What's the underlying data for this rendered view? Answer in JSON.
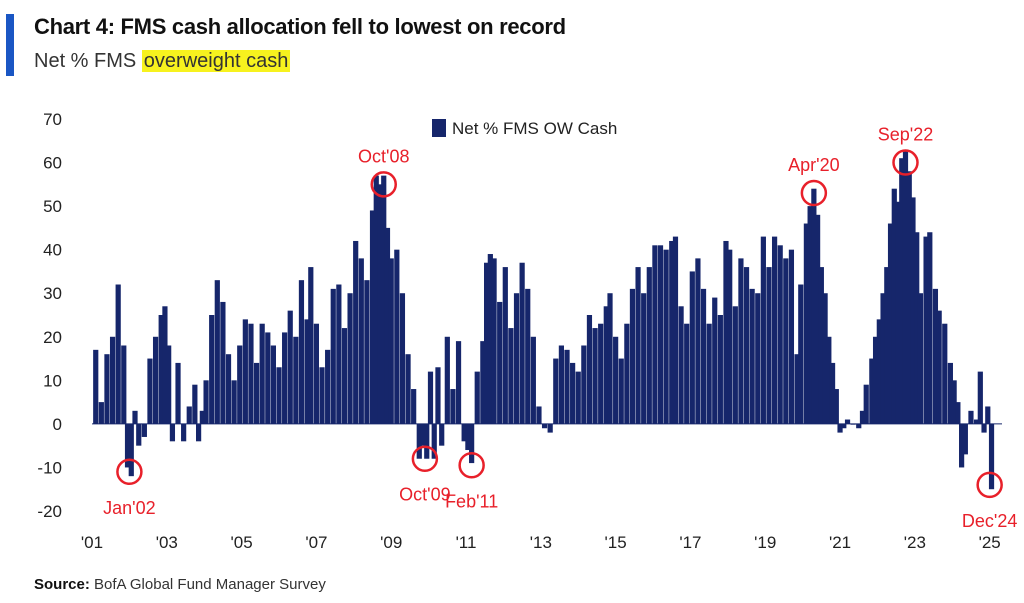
{
  "header": {
    "title": "Chart 4: FMS cash allocation fell to lowest on record",
    "subtitle_prefix": "Net % FMS ",
    "subtitle_highlight": "overweight cash"
  },
  "source": {
    "label": "Source:",
    "text": "BofA Global Fund Manager Survey"
  },
  "colors": {
    "bar": "#16266b",
    "annotation": "#e8202a",
    "accent": "#1a56c4",
    "highlight": "#f7f21e"
  },
  "chart_data": {
    "type": "bar",
    "legend": {
      "label": "Net % FMS OW Cash",
      "position": "top-center"
    },
    "ylim": [
      -20,
      70
    ],
    "yticks": [
      -20,
      -10,
      0,
      10,
      20,
      30,
      40,
      50,
      60,
      70
    ],
    "xlim": [
      2001.0,
      2025.33
    ],
    "xticks": [
      {
        "value": 2001,
        "label": "'01"
      },
      {
        "value": 2003,
        "label": "'03"
      },
      {
        "value": 2005,
        "label": "'05"
      },
      {
        "value": 2007,
        "label": "'07"
      },
      {
        "value": 2009,
        "label": "'09"
      },
      {
        "value": 2011,
        "label": "'11"
      },
      {
        "value": 2013,
        "label": "'13"
      },
      {
        "value": 2015,
        "label": "'15"
      },
      {
        "value": 2017,
        "label": "'17"
      },
      {
        "value": 2019,
        "label": "'19"
      },
      {
        "value": 2021,
        "label": "'21"
      },
      {
        "value": 2023,
        "label": "'23"
      },
      {
        "value": 2025,
        "label": "'25"
      }
    ],
    "grid": false,
    "series": [
      {
        "name": "Net % FMS OW Cash",
        "points": [
          [
            2001.1,
            17
          ],
          [
            2001.25,
            5
          ],
          [
            2001.4,
            16
          ],
          [
            2001.55,
            20
          ],
          [
            2001.7,
            32
          ],
          [
            2001.85,
            18
          ],
          [
            2001.95,
            -10
          ],
          [
            2002.05,
            -12
          ],
          [
            2002.15,
            3
          ],
          [
            2002.25,
            -5
          ],
          [
            2002.4,
            -3
          ],
          [
            2002.55,
            15
          ],
          [
            2002.7,
            20
          ],
          [
            2002.85,
            25
          ],
          [
            2002.95,
            27
          ],
          [
            2003.05,
            18
          ],
          [
            2003.15,
            -4
          ],
          [
            2003.3,
            14
          ],
          [
            2003.45,
            -4
          ],
          [
            2003.6,
            4
          ],
          [
            2003.75,
            9
          ],
          [
            2003.85,
            -4
          ],
          [
            2003.95,
            3
          ],
          [
            2004.05,
            10
          ],
          [
            2004.2,
            25
          ],
          [
            2004.35,
            33
          ],
          [
            2004.5,
            28
          ],
          [
            2004.65,
            16
          ],
          [
            2004.8,
            10
          ],
          [
            2004.95,
            18
          ],
          [
            2005.1,
            24
          ],
          [
            2005.25,
            23
          ],
          [
            2005.4,
            14
          ],
          [
            2005.55,
            23
          ],
          [
            2005.7,
            21
          ],
          [
            2005.85,
            18
          ],
          [
            2006.0,
            13
          ],
          [
            2006.15,
            21
          ],
          [
            2006.3,
            26
          ],
          [
            2006.45,
            20
          ],
          [
            2006.6,
            33
          ],
          [
            2006.75,
            24
          ],
          [
            2006.85,
            36
          ],
          [
            2007.0,
            23
          ],
          [
            2007.15,
            13
          ],
          [
            2007.3,
            17
          ],
          [
            2007.45,
            31
          ],
          [
            2007.6,
            32
          ],
          [
            2007.75,
            22
          ],
          [
            2007.9,
            30
          ],
          [
            2008.05,
            42
          ],
          [
            2008.2,
            38
          ],
          [
            2008.35,
            33
          ],
          [
            2008.5,
            49
          ],
          [
            2008.6,
            57
          ],
          [
            2008.7,
            55
          ],
          [
            2008.8,
            57
          ],
          [
            2008.9,
            45
          ],
          [
            2009.0,
            38
          ],
          [
            2009.15,
            40
          ],
          [
            2009.3,
            30
          ],
          [
            2009.45,
            16
          ],
          [
            2009.6,
            8
          ],
          [
            2009.75,
            -8
          ],
          [
            2009.85,
            -5
          ],
          [
            2009.95,
            -8
          ],
          [
            2010.05,
            12
          ],
          [
            2010.15,
            -8
          ],
          [
            2010.25,
            13
          ],
          [
            2010.35,
            -5
          ],
          [
            2010.5,
            20
          ],
          [
            2010.65,
            8
          ],
          [
            2010.8,
            19
          ],
          [
            2010.95,
            -4
          ],
          [
            2011.05,
            -6
          ],
          [
            2011.15,
            -9
          ],
          [
            2011.3,
            12
          ],
          [
            2011.45,
            19
          ],
          [
            2011.55,
            37
          ],
          [
            2011.65,
            39
          ],
          [
            2011.75,
            38
          ],
          [
            2011.9,
            28
          ],
          [
            2012.05,
            36
          ],
          [
            2012.2,
            22
          ],
          [
            2012.35,
            30
          ],
          [
            2012.5,
            37
          ],
          [
            2012.65,
            31
          ],
          [
            2012.8,
            20
          ],
          [
            2012.95,
            4
          ],
          [
            2013.1,
            -1
          ],
          [
            2013.25,
            -2
          ],
          [
            2013.4,
            15
          ],
          [
            2013.55,
            18
          ],
          [
            2013.7,
            17
          ],
          [
            2013.85,
            14
          ],
          [
            2014.0,
            12
          ],
          [
            2014.15,
            18
          ],
          [
            2014.3,
            25
          ],
          [
            2014.45,
            22
          ],
          [
            2014.6,
            23
          ],
          [
            2014.75,
            27
          ],
          [
            2014.85,
            30
          ],
          [
            2015.0,
            20
          ],
          [
            2015.15,
            15
          ],
          [
            2015.3,
            23
          ],
          [
            2015.45,
            31
          ],
          [
            2015.6,
            36
          ],
          [
            2015.75,
            30
          ],
          [
            2015.9,
            36
          ],
          [
            2016.05,
            41
          ],
          [
            2016.2,
            41
          ],
          [
            2016.35,
            40
          ],
          [
            2016.5,
            42
          ],
          [
            2016.6,
            43
          ],
          [
            2016.75,
            27
          ],
          [
            2016.9,
            23
          ],
          [
            2017.05,
            35
          ],
          [
            2017.2,
            38
          ],
          [
            2017.35,
            31
          ],
          [
            2017.5,
            23
          ],
          [
            2017.65,
            29
          ],
          [
            2017.8,
            25
          ],
          [
            2017.95,
            42
          ],
          [
            2018.05,
            40
          ],
          [
            2018.2,
            27
          ],
          [
            2018.35,
            38
          ],
          [
            2018.5,
            36
          ],
          [
            2018.65,
            31
          ],
          [
            2018.8,
            30
          ],
          [
            2018.95,
            43
          ],
          [
            2019.1,
            36
          ],
          [
            2019.25,
            43
          ],
          [
            2019.4,
            41
          ],
          [
            2019.55,
            38
          ],
          [
            2019.7,
            40
          ],
          [
            2019.85,
            16
          ],
          [
            2019.95,
            32
          ],
          [
            2020.1,
            46
          ],
          [
            2020.2,
            50
          ],
          [
            2020.3,
            54
          ],
          [
            2020.4,
            48
          ],
          [
            2020.5,
            36
          ],
          [
            2020.6,
            30
          ],
          [
            2020.7,
            20
          ],
          [
            2020.8,
            14
          ],
          [
            2020.9,
            8
          ],
          [
            2021.0,
            -2
          ],
          [
            2021.1,
            -1
          ],
          [
            2021.2,
            1
          ],
          [
            2021.35,
            0
          ],
          [
            2021.5,
            -1
          ],
          [
            2021.6,
            3
          ],
          [
            2021.7,
            9
          ],
          [
            2021.85,
            15
          ],
          [
            2021.95,
            20
          ],
          [
            2022.05,
            24
          ],
          [
            2022.15,
            30
          ],
          [
            2022.25,
            36
          ],
          [
            2022.35,
            46
          ],
          [
            2022.45,
            54
          ],
          [
            2022.55,
            51
          ],
          [
            2022.65,
            61
          ],
          [
            2022.75,
            63
          ],
          [
            2022.85,
            58
          ],
          [
            2022.95,
            52
          ],
          [
            2023.05,
            44
          ],
          [
            2023.15,
            30
          ],
          [
            2023.3,
            43
          ],
          [
            2023.4,
            44
          ],
          [
            2023.55,
            31
          ],
          [
            2023.65,
            26
          ],
          [
            2023.8,
            23
          ],
          [
            2023.95,
            14
          ],
          [
            2024.05,
            10
          ],
          [
            2024.15,
            5
          ],
          [
            2024.25,
            -10
          ],
          [
            2024.35,
            -7
          ],
          [
            2024.5,
            3
          ],
          [
            2024.65,
            1
          ],
          [
            2024.75,
            12
          ],
          [
            2024.85,
            -2
          ],
          [
            2024.95,
            4
          ],
          [
            2025.05,
            -15
          ]
        ]
      }
    ],
    "annotations": [
      {
        "label": "Jan'02",
        "x": 2002.0,
        "y": -11,
        "label_pos": "below"
      },
      {
        "label": "Oct'08",
        "x": 2008.8,
        "y": 55,
        "label_pos": "above"
      },
      {
        "label": "Oct'09",
        "x": 2009.9,
        "y": -8,
        "label_pos": "below"
      },
      {
        "label": "Feb'11",
        "x": 2011.15,
        "y": -9.5,
        "label_pos": "below"
      },
      {
        "label": "Apr'20",
        "x": 2020.3,
        "y": 53,
        "label_pos": "above"
      },
      {
        "label": "Sep'22",
        "x": 2022.75,
        "y": 60,
        "label_pos": "above"
      },
      {
        "label": "Dec'24",
        "x": 2025.0,
        "y": -14,
        "label_pos": "below"
      }
    ]
  }
}
